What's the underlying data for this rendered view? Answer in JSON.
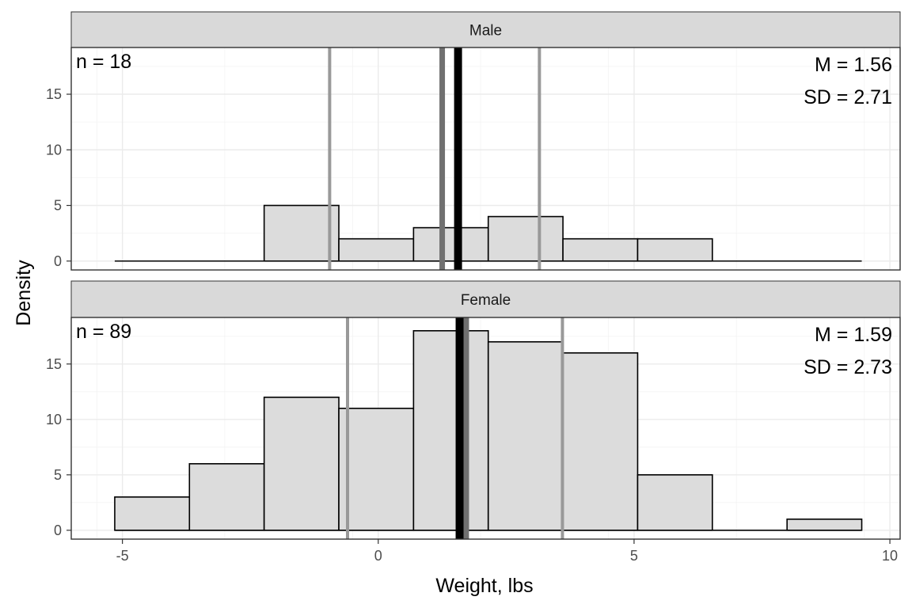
{
  "chart_data": {
    "type": "bar",
    "xlabel": "Weight, lbs",
    "ylabel": "Density",
    "xlim": [
      -6,
      10.2
    ],
    "ylim": [
      -0.8,
      19.2
    ],
    "x_ticks": [
      "-5",
      "0",
      "5",
      "10"
    ],
    "x_tick_values": [
      -5,
      0,
      5,
      10
    ],
    "y_ticks": [
      "0",
      "5",
      "10",
      "15"
    ],
    "y_tick_values": [
      0,
      5,
      10,
      15
    ],
    "bin_edges": [
      -5.15,
      -3.69,
      -2.23,
      -0.77,
      0.69,
      2.15,
      3.61,
      5.07,
      6.53,
      7.99,
      9.45
    ],
    "grid": true,
    "colors": {
      "bar_fill": "#dcdcdc",
      "bar_stroke": "#000000",
      "mean_line": "#000000",
      "median_line": "#707070",
      "sd_line": "#999999",
      "strip": "#d9d9d9"
    },
    "panels": [
      {
        "strip_label": "Male",
        "n_label": "n = 18",
        "mean_label": "M = 1.56",
        "sd_label": "SD = 2.71",
        "counts": [
          0,
          0,
          5,
          2,
          3,
          4,
          2,
          2,
          0,
          0
        ],
        "mean": 1.56,
        "median": 1.25,
        "sd_lines": [
          -0.95,
          3.15
        ]
      },
      {
        "strip_label": "Female",
        "n_label": "n = 89",
        "mean_label": "M = 1.59",
        "sd_label": "SD = 2.73",
        "counts": [
          3,
          6,
          12,
          11,
          18,
          17,
          16,
          5,
          0,
          1
        ],
        "mean": 1.59,
        "median": 1.72,
        "sd_lines": [
          -0.6,
          3.6
        ]
      }
    ]
  }
}
